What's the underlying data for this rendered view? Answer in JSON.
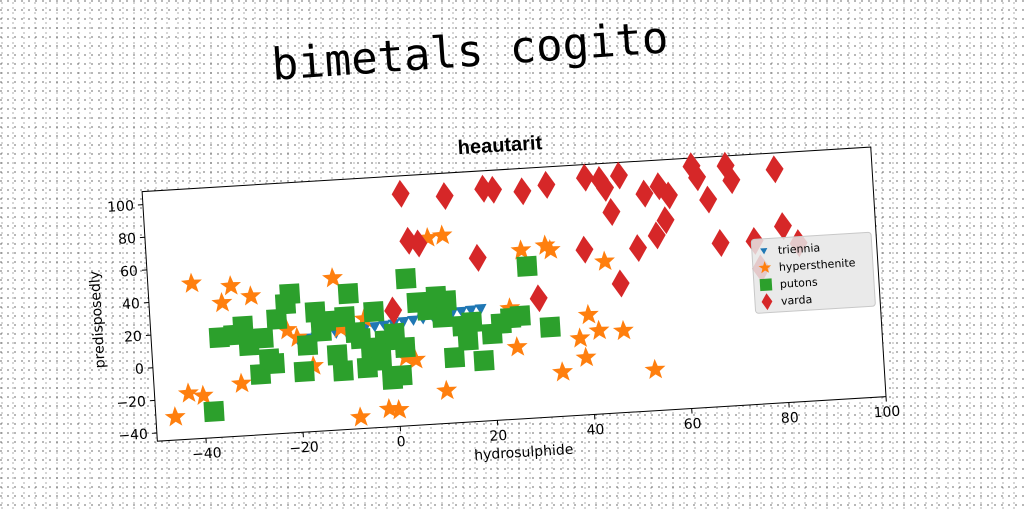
{
  "header": {
    "title": "bimetals cogito"
  },
  "chart_data": {
    "type": "scatter",
    "title": "heautarit",
    "xlabel": "hydrosulphide",
    "ylabel": "predisposedly",
    "xlim": [
      -50,
      100
    ],
    "ylim": [
      -45,
      108
    ],
    "xticks": [
      -40,
      -20,
      0,
      20,
      40,
      60,
      80,
      100
    ],
    "yticks": [
      -40,
      -20,
      0,
      20,
      40,
      60,
      80,
      100
    ],
    "grid": false,
    "legend_position": "right",
    "series": [
      {
        "name": "triennia",
        "marker": "triangle-down",
        "color": "#1f77b4",
        "points": [
          [
            -20,
            12
          ],
          [
            -18,
            12.5
          ],
          [
            -16,
            13
          ],
          [
            -14,
            14
          ],
          [
            -12,
            14.5
          ],
          [
            -10,
            15
          ],
          [
            -8,
            16
          ],
          [
            -6,
            16.5
          ],
          [
            -4,
            17
          ],
          [
            -2,
            17.5
          ],
          [
            0,
            18
          ],
          [
            2,
            19
          ],
          [
            4,
            19.5
          ],
          [
            6,
            20
          ],
          [
            8,
            21
          ],
          [
            10,
            21.5
          ],
          [
            12,
            22
          ],
          [
            14,
            23
          ],
          [
            16,
            23.5
          ],
          [
            18,
            24
          ]
        ]
      },
      {
        "name": "hypersthenite",
        "marker": "star",
        "color": "#ff7f0e",
        "points": [
          [
            -46,
            -31
          ],
          [
            -43,
            -17
          ],
          [
            -41,
            50
          ],
          [
            -40,
            -19
          ],
          [
            -35,
            37
          ],
          [
            -33,
            47
          ],
          [
            -32,
            -13
          ],
          [
            -31,
            19
          ],
          [
            -29,
            40
          ],
          [
            -22,
            18
          ],
          [
            -20,
            13
          ],
          [
            -17,
            -5
          ],
          [
            -12,
            48
          ],
          [
            -11,
            17
          ],
          [
            -8,
            -38
          ],
          [
            -6,
            22
          ],
          [
            -2,
            -34
          ],
          [
            0,
            -35
          ],
          [
            2,
            -3
          ],
          [
            4,
            -5
          ],
          [
            8,
            69
          ],
          [
            10,
            -25
          ],
          [
            11,
            70
          ],
          [
            24,
            23
          ],
          [
            25,
            -1
          ],
          [
            27,
            58
          ],
          [
            32,
            60
          ],
          [
            33,
            57
          ],
          [
            34,
            -18
          ],
          [
            38,
            2
          ],
          [
            39,
            -10
          ],
          [
            40,
            16
          ],
          [
            42,
            6
          ],
          [
            44,
            48
          ],
          [
            47,
            5
          ],
          [
            53,
            -20
          ]
        ]
      },
      {
        "name": "putons",
        "marker": "square",
        "color": "#2ca02c",
        "points": [
          [
            -38,
            -29
          ],
          [
            -36,
            16
          ],
          [
            -33,
            17
          ],
          [
            -31,
            22
          ],
          [
            -30,
            10
          ],
          [
            -28,
            -8
          ],
          [
            -27,
            14
          ],
          [
            -26,
            1
          ],
          [
            -25,
            -2
          ],
          [
            -24,
            25
          ],
          [
            -22,
            34
          ],
          [
            -21,
            40
          ],
          [
            -19,
            -8
          ],
          [
            -18,
            8
          ],
          [
            -16,
            28
          ],
          [
            -15,
            16
          ],
          [
            -14,
            22
          ],
          [
            -12,
            1
          ],
          [
            -11,
            -9
          ],
          [
            -10,
            24
          ],
          [
            -9,
            38
          ],
          [
            -8,
            14
          ],
          [
            -7,
            10
          ],
          [
            -6,
            -8
          ],
          [
            -5,
            4
          ],
          [
            -4,
            26
          ],
          [
            -3,
            -4
          ],
          [
            -2,
            8
          ],
          [
            -1,
            -16
          ],
          [
            0,
            12
          ],
          [
            1,
            -14
          ],
          [
            2,
            3
          ],
          [
            3,
            45
          ],
          [
            5,
            30
          ],
          [
            7,
            25
          ],
          [
            9,
            33
          ],
          [
            10,
            20
          ],
          [
            11,
            30
          ],
          [
            12,
            -5
          ],
          [
            14,
            14
          ],
          [
            15,
            5
          ],
          [
            16,
            16
          ],
          [
            18,
            -8
          ],
          [
            20,
            8
          ],
          [
            22,
            14
          ],
          [
            24,
            17
          ],
          [
            26,
            18
          ],
          [
            28,
            48
          ],
          [
            32,
            10
          ]
        ]
      },
      {
        "name": "varda",
        "marker": "diamond",
        "color": "#d62728",
        "points": [
          [
            0,
            26
          ],
          [
            3,
            97
          ],
          [
            4,
            68
          ],
          [
            6,
            66
          ],
          [
            12,
            94
          ],
          [
            18,
            55
          ],
          [
            20,
            97
          ],
          [
            22,
            96
          ],
          [
            28,
            94
          ],
          [
            30,
            28
          ],
          [
            33,
            97
          ],
          [
            40,
            56
          ],
          [
            41,
            100
          ],
          [
            44,
            98
          ],
          [
            45,
            93
          ],
          [
            46,
            78
          ],
          [
            47,
            34
          ],
          [
            48,
            100
          ],
          [
            51,
            55
          ],
          [
            53,
            88
          ],
          [
            55,
            62
          ],
          [
            56,
            92
          ],
          [
            57,
            71
          ],
          [
            58,
            86
          ],
          [
            63,
            103
          ],
          [
            64,
            96
          ],
          [
            66,
            82
          ],
          [
            68,
            55
          ],
          [
            70,
            102
          ],
          [
            71,
            93
          ],
          [
            75,
            55
          ],
          [
            76,
            38
          ],
          [
            80,
            98
          ],
          [
            81,
            63
          ],
          [
            84,
            52
          ]
        ]
      }
    ]
  }
}
